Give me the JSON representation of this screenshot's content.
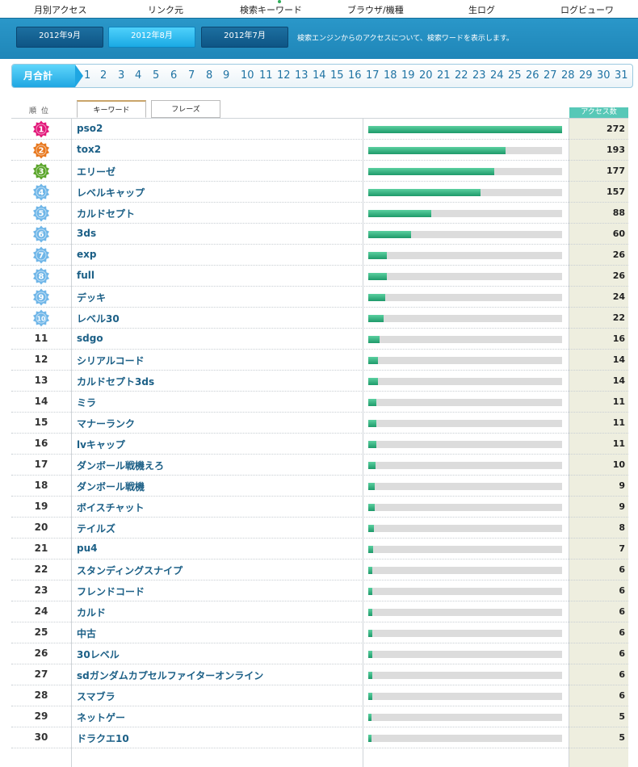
{
  "nav": {
    "items": [
      "月別アクセス",
      "リンク元",
      "検索キーワード",
      "ブラウザ/機種",
      "生ログ",
      "ログビューワ"
    ],
    "active_index": 2
  },
  "months": {
    "tabs": [
      "2012年9月",
      "2012年8月",
      "2012年7月"
    ],
    "selected_index": 1,
    "description": "検索エンジンからのアクセスについて、検索ワードを表示します。"
  },
  "days": {
    "total_label": "月合計",
    "list": [
      "1",
      "2",
      "3",
      "4",
      "5",
      "6",
      "7",
      "8",
      "9",
      "10",
      "11",
      "12",
      "13",
      "14",
      "15",
      "16",
      "17",
      "18",
      "19",
      "20",
      "21",
      "22",
      "23",
      "24",
      "25",
      "26",
      "27",
      "28",
      "29",
      "30",
      "31"
    ]
  },
  "table": {
    "rank_header": "順位",
    "tabs": [
      "キーワード",
      "フレーズ"
    ],
    "count_header": "アクセス数",
    "max_count": 272,
    "badge_colors": [
      "#e2187a",
      "#e8781e",
      "#5aa52a",
      "#6fb6e8",
      "#6fb6e8",
      "#6fb6e8",
      "#6fb6e8",
      "#6fb6e8",
      "#6fb6e8",
      "#6fb6e8"
    ],
    "rows": [
      {
        "rank": "1",
        "keyword": "pso2",
        "count": 272
      },
      {
        "rank": "2",
        "keyword": "tox2",
        "count": 193
      },
      {
        "rank": "3",
        "keyword": "エリーゼ",
        "count": 177
      },
      {
        "rank": "4",
        "keyword": "レベルキャップ",
        "count": 157
      },
      {
        "rank": "5",
        "keyword": "カルドセプト",
        "count": 88
      },
      {
        "rank": "6",
        "keyword": "3ds",
        "count": 60
      },
      {
        "rank": "7",
        "keyword": "exp",
        "count": 26
      },
      {
        "rank": "8",
        "keyword": "full",
        "count": 26
      },
      {
        "rank": "9",
        "keyword": "デッキ",
        "count": 24
      },
      {
        "rank": "10",
        "keyword": "レベル30",
        "count": 22
      },
      {
        "rank": "11",
        "keyword": "sdgo",
        "count": 16
      },
      {
        "rank": "12",
        "keyword": "シリアルコード",
        "count": 14
      },
      {
        "rank": "13",
        "keyword": "カルドセプト3ds",
        "count": 14
      },
      {
        "rank": "14",
        "keyword": "ミラ",
        "count": 11
      },
      {
        "rank": "15",
        "keyword": "マナーランク",
        "count": 11
      },
      {
        "rank": "16",
        "keyword": "lvキャップ",
        "count": 11
      },
      {
        "rank": "17",
        "keyword": "ダンボール戦機えろ",
        "count": 10
      },
      {
        "rank": "18",
        "keyword": "ダンボール戦機",
        "count": 9
      },
      {
        "rank": "19",
        "keyword": "ボイスチャット",
        "count": 9
      },
      {
        "rank": "20",
        "keyword": "テイルズ",
        "count": 8
      },
      {
        "rank": "21",
        "keyword": "pu4",
        "count": 7
      },
      {
        "rank": "22",
        "keyword": "スタンディングスナイプ",
        "count": 6
      },
      {
        "rank": "23",
        "keyword": "フレンドコード",
        "count": 6
      },
      {
        "rank": "24",
        "keyword": "カルド",
        "count": 6
      },
      {
        "rank": "25",
        "keyword": "中古",
        "count": 6
      },
      {
        "rank": "26",
        "keyword": "30レベル",
        "count": 6
      },
      {
        "rank": "27",
        "keyword": "sdガンダムカプセルファイターオンライン",
        "count": 6
      },
      {
        "rank": "28",
        "keyword": "スマブラ",
        "count": 6
      },
      {
        "rank": "29",
        "keyword": "ネットゲー",
        "count": 5
      },
      {
        "rank": "30",
        "keyword": "ドラクエ10",
        "count": 5
      }
    ]
  }
}
